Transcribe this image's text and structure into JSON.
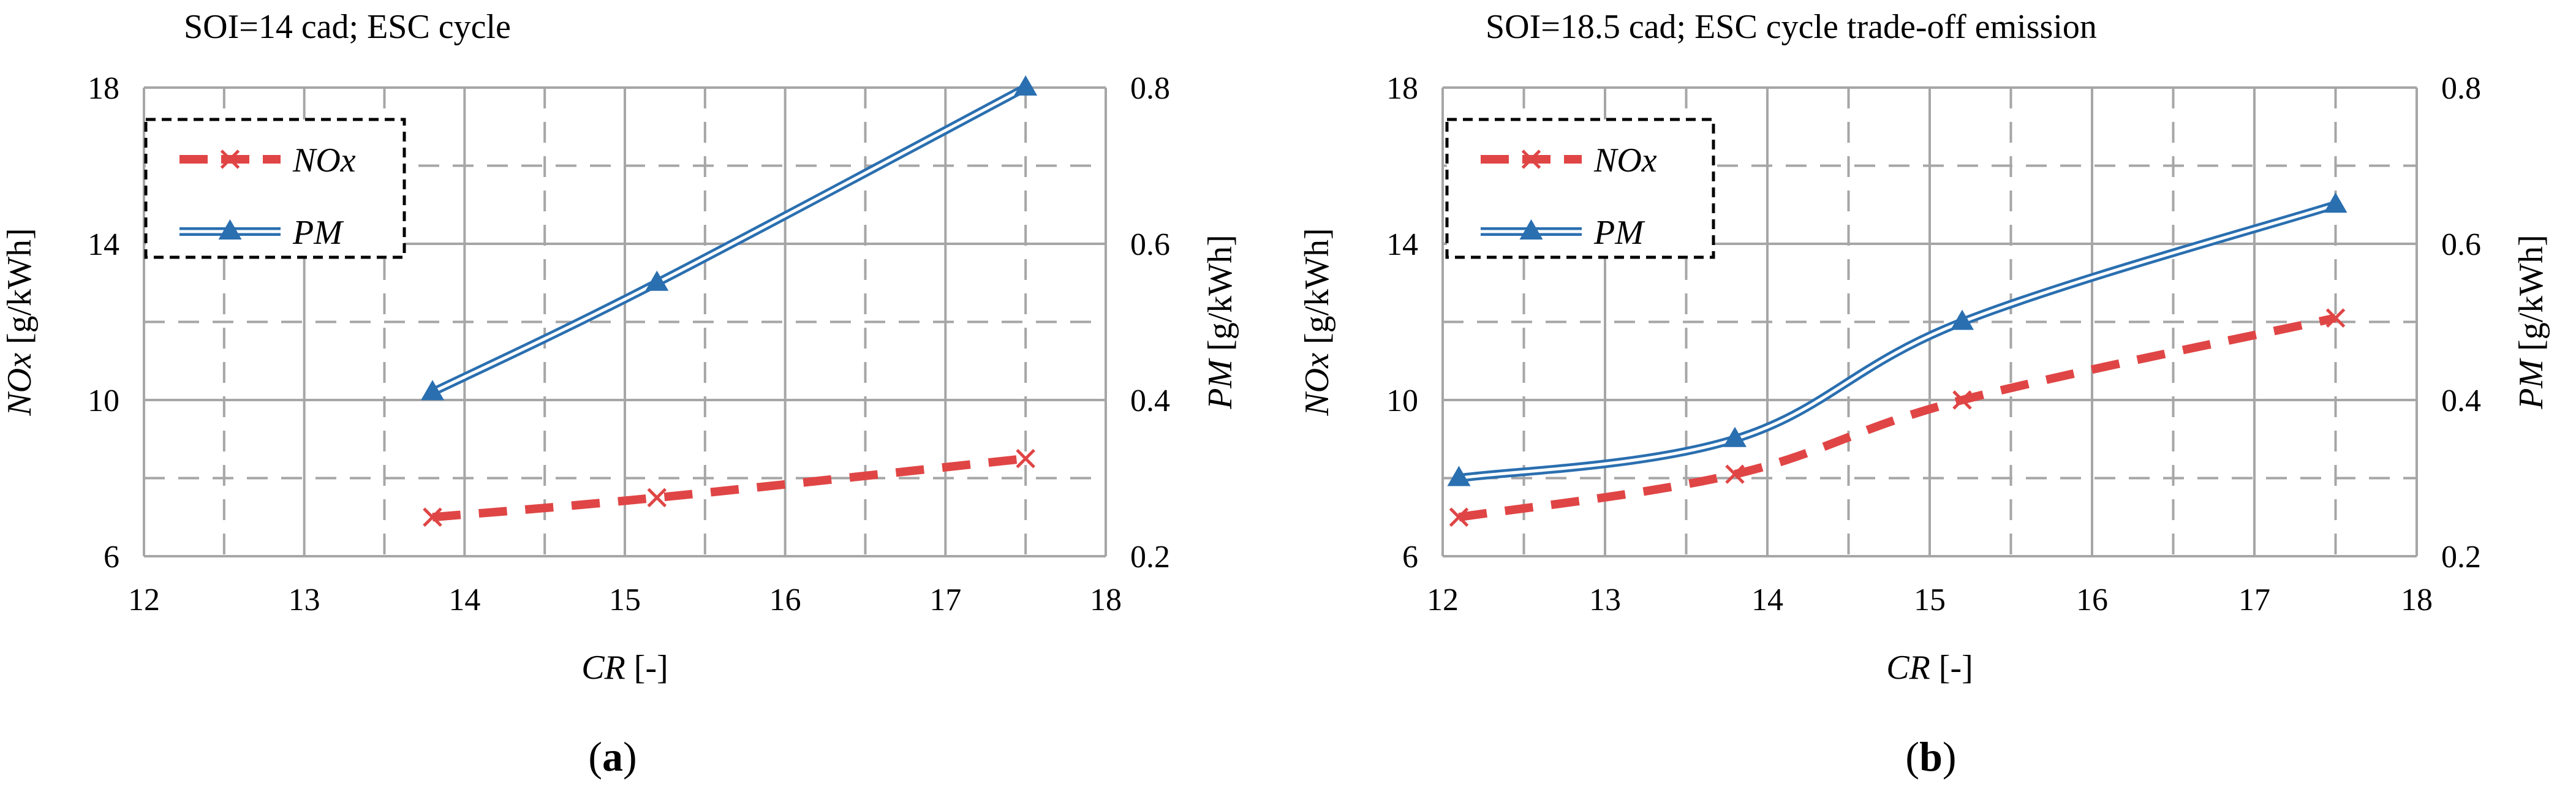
{
  "chart_data": [
    {
      "type": "line",
      "panel_label": "a",
      "title": "SOI=14 cad; ESC cycle",
      "xlabel": {
        "italic": "CR",
        "rest": " [-]"
      },
      "ylabel": {
        "italic": "NOx",
        "rest": " [g/kWh]"
      },
      "y2label": {
        "italic": "PM",
        "rest": " [g/kWh]"
      },
      "xlim": [
        12,
        18
      ],
      "ylim": [
        6,
        18
      ],
      "y2lim": [
        0.2,
        0.8
      ],
      "xticks": [
        "12",
        "13",
        "14",
        "15",
        "16",
        "17",
        "18"
      ],
      "yticks": [
        "6",
        "10",
        "14",
        "18"
      ],
      "y2ticks": [
        "0.2",
        "0.4",
        "0.6",
        "0.8"
      ],
      "legend_position": "top-left",
      "series": [
        {
          "name": "NOx",
          "axis": "left",
          "style": "dashed-red-x",
          "color": "#e04545",
          "x": [
            13.8,
            15.2,
            17.5
          ],
          "values": [
            7.0,
            7.5,
            8.5
          ]
        },
        {
          "name": "PM",
          "axis": "right",
          "style": "double-blue-triangle",
          "color": "#2a6fb0",
          "x": [
            13.8,
            15.2,
            17.5
          ],
          "values": [
            0.41,
            0.55,
            0.8
          ]
        }
      ]
    },
    {
      "type": "line",
      "panel_label": "b",
      "title": "SOI=18.5 cad; ESC cycle trade-off emission",
      "xlabel": {
        "italic": "CR",
        "rest": " [-]"
      },
      "ylabel": {
        "italic": "NOx",
        "rest": " [g/kWh]"
      },
      "y2label": {
        "italic": "PM",
        "rest": " [g/kWh]"
      },
      "xlim": [
        12,
        18
      ],
      "ylim": [
        6,
        18
      ],
      "y2lim": [
        0.2,
        0.8
      ],
      "xticks": [
        "12",
        "13",
        "14",
        "15",
        "16",
        "17",
        "18"
      ],
      "yticks": [
        "6",
        "10",
        "14",
        "18"
      ],
      "y2ticks": [
        "0.2",
        "0.4",
        "0.6",
        "0.8"
      ],
      "legend_position": "top-left",
      "series": [
        {
          "name": "NOx",
          "axis": "left",
          "style": "dashed-red-x",
          "color": "#e04545",
          "x": [
            12.1,
            13.8,
            15.2,
            17.5
          ],
          "values": [
            7.0,
            8.1,
            10.0,
            12.1
          ]
        },
        {
          "name": "PM",
          "axis": "right",
          "style": "double-blue-triangle",
          "color": "#2a6fb0",
          "x": [
            12.1,
            13.8,
            15.2,
            17.5
          ],
          "values": [
            0.3,
            0.35,
            0.5,
            0.65
          ]
        }
      ]
    }
  ],
  "colors": {
    "grid": "#a6a6a6",
    "nox": "#e04545",
    "pm": "#2a6fb0"
  }
}
